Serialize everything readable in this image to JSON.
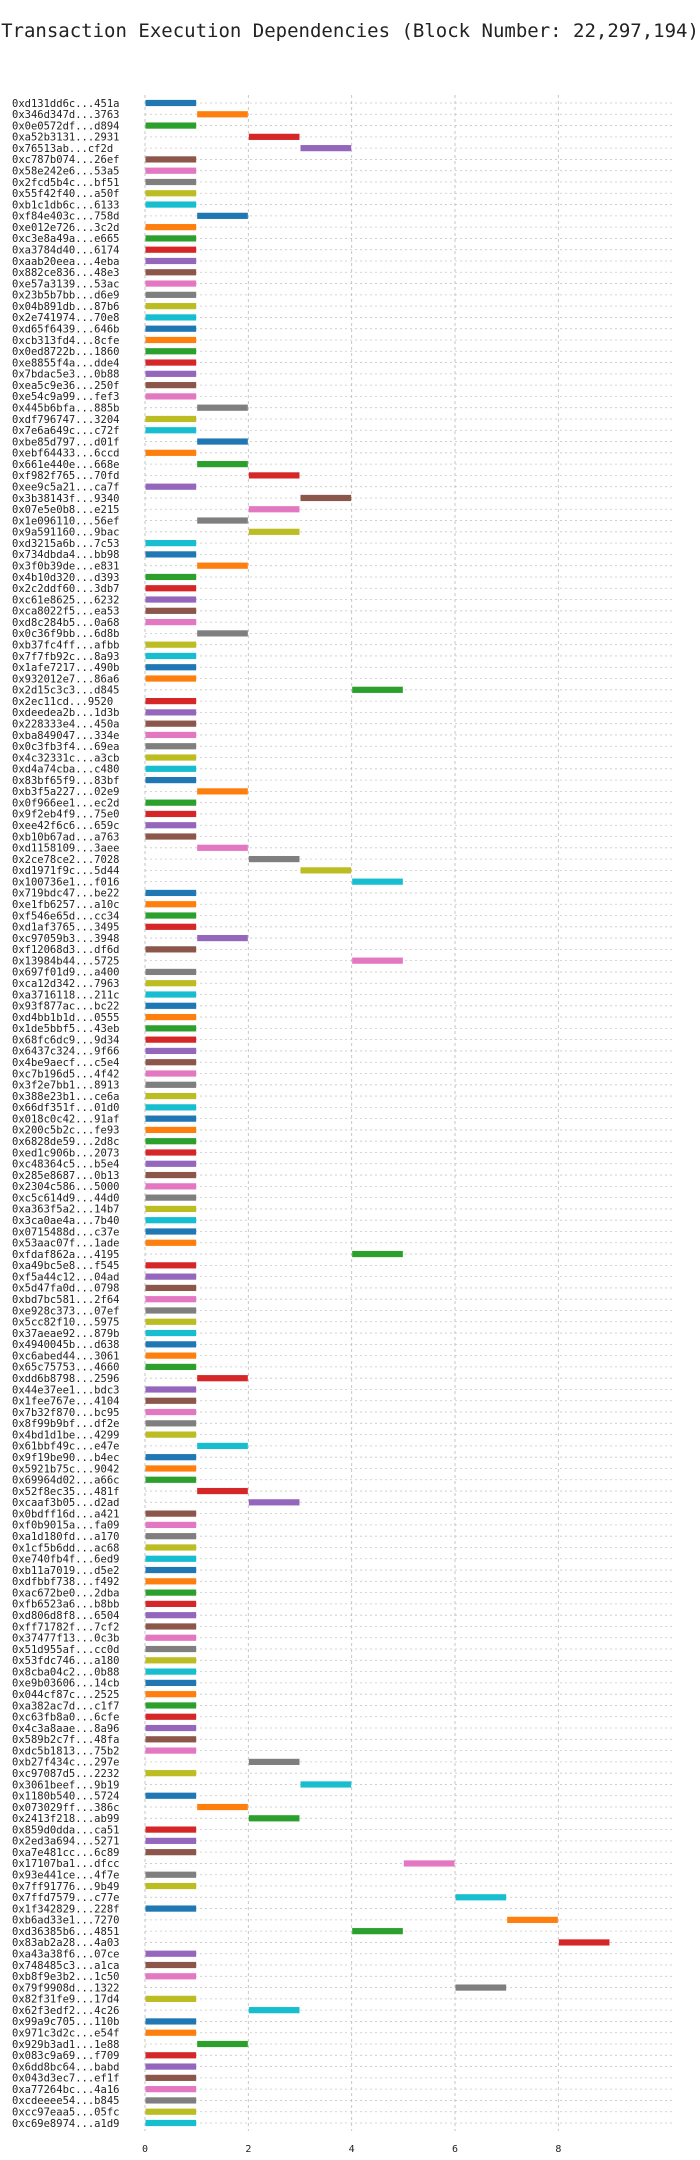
{
  "chart_data": {
    "type": "bar",
    "orientation": "horizontal-gantt",
    "title": "Transaction Execution Dependencies (Block Number: 22,297,194)",
    "xlabel": "",
    "ylabel": "",
    "xlim": [
      0,
      10.2
    ],
    "xticks": [
      0,
      2,
      4,
      6,
      8
    ],
    "grid": true,
    "palette": [
      "#1f77b4",
      "#ff7f0e",
      "#2ca02c",
      "#d62728",
      "#9467bd",
      "#8c564b",
      "#e377c2",
      "#7f7f7f",
      "#bcbd22",
      "#17becf"
    ],
    "tasks": [
      {
        "label": "0xd131dd6c...451a",
        "start": 0,
        "end": 1
      },
      {
        "label": "0x346d347d...3763",
        "start": 1,
        "end": 2
      },
      {
        "label": "0x0e0572df...d894",
        "start": 0,
        "end": 1
      },
      {
        "label": "0xa52b3131...2931",
        "start": 2,
        "end": 3
      },
      {
        "label": "0x76513ab...cf2d",
        "start": 3,
        "end": 4
      },
      {
        "label": "0xc787b074...26ef",
        "start": 0,
        "end": 1
      },
      {
        "label": "0x58e242e6...53a5",
        "start": 0,
        "end": 1
      },
      {
        "label": "0x2fcd5b4c...bf51",
        "start": 0,
        "end": 1
      },
      {
        "label": "0x55f42f40...a50f",
        "start": 0,
        "end": 1
      },
      {
        "label": "0xb1c1db6c...6133",
        "start": 0,
        "end": 1
      },
      {
        "label": "0xf84e403c...758d",
        "start": 1,
        "end": 2
      },
      {
        "label": "0xe012e726...3c2d",
        "start": 0,
        "end": 1
      },
      {
        "label": "0xc3e8a49a...e665",
        "start": 0,
        "end": 1
      },
      {
        "label": "0xa3784d40...6174",
        "start": 0,
        "end": 1
      },
      {
        "label": "0xaab20eea...4eba",
        "start": 0,
        "end": 1
      },
      {
        "label": "0x882ce836...48e3",
        "start": 0,
        "end": 1
      },
      {
        "label": "0xe57a3139...53ac",
        "start": 0,
        "end": 1
      },
      {
        "label": "0x23b5b7bb...d6e9",
        "start": 0,
        "end": 1
      },
      {
        "label": "0x04b891db...87b6",
        "start": 0,
        "end": 1
      },
      {
        "label": "0x2e741974...70e8",
        "start": 0,
        "end": 1
      },
      {
        "label": "0xd65f6439...646b",
        "start": 0,
        "end": 1
      },
      {
        "label": "0xcb313fd4...8cfe",
        "start": 0,
        "end": 1
      },
      {
        "label": "0x0ed8722b...1860",
        "start": 0,
        "end": 1
      },
      {
        "label": "0xe8855f4a...dde4",
        "start": 0,
        "end": 1
      },
      {
        "label": "0x7bdac5e3...0b88",
        "start": 0,
        "end": 1
      },
      {
        "label": "0xea5c9e36...250f",
        "start": 0,
        "end": 1
      },
      {
        "label": "0xe54c9a99...fef3",
        "start": 0,
        "end": 1
      },
      {
        "label": "0x445b6bfa...885b",
        "start": 1,
        "end": 2
      },
      {
        "label": "0xdf796747...3204",
        "start": 0,
        "end": 1
      },
      {
        "label": "0x7e6a649c...c72f",
        "start": 0,
        "end": 1
      },
      {
        "label": "0xbe85d797...d01f",
        "start": 1,
        "end": 2
      },
      {
        "label": "0xebf64433...6ccd",
        "start": 0,
        "end": 1
      },
      {
        "label": "0x661e440e...668e",
        "start": 1,
        "end": 2
      },
      {
        "label": "0xf982f765...70fd",
        "start": 2,
        "end": 3
      },
      {
        "label": "0xee9c5a21...ca7f",
        "start": 0,
        "end": 1
      },
      {
        "label": "0x3b38143f...9340",
        "start": 3,
        "end": 4
      },
      {
        "label": "0x07e5e0b8...e215",
        "start": 2,
        "end": 3
      },
      {
        "label": "0x1e096110...56ef",
        "start": 1,
        "end": 2
      },
      {
        "label": "0x9a591160...9bac",
        "start": 2,
        "end": 3
      },
      {
        "label": "0xd3215a6b...7c53",
        "start": 0,
        "end": 1
      },
      {
        "label": "0x734dbda4...bb98",
        "start": 0,
        "end": 1
      },
      {
        "label": "0x3f0b39de...e831",
        "start": 1,
        "end": 2
      },
      {
        "label": "0x4b10d320...d393",
        "start": 0,
        "end": 1
      },
      {
        "label": "0x2c2ddf60...3db7",
        "start": 0,
        "end": 1
      },
      {
        "label": "0xc61e8625...6232",
        "start": 0,
        "end": 1
      },
      {
        "label": "0xca8022f5...ea53",
        "start": 0,
        "end": 1
      },
      {
        "label": "0xd8c284b5...0a68",
        "start": 0,
        "end": 1
      },
      {
        "label": "0x0c36f9bb...6d8b",
        "start": 1,
        "end": 2
      },
      {
        "label": "0xb37fc4ff...afbb",
        "start": 0,
        "end": 1
      },
      {
        "label": "0x7f7fb92c...8a93",
        "start": 0,
        "end": 1
      },
      {
        "label": "0x1afe7217...490b",
        "start": 0,
        "end": 1
      },
      {
        "label": "0x932012e7...86a6",
        "start": 0,
        "end": 1
      },
      {
        "label": "0x2d15c3c3...d845",
        "start": 4,
        "end": 5
      },
      {
        "label": "0x2ec11cd...9520",
        "start": 0,
        "end": 1
      },
      {
        "label": "0xdeedea2b...1d3b",
        "start": 0,
        "end": 1
      },
      {
        "label": "0x228333e4...450a",
        "start": 0,
        "end": 1
      },
      {
        "label": "0xba849047...334e",
        "start": 0,
        "end": 1
      },
      {
        "label": "0x0c3fb3f4...69ea",
        "start": 0,
        "end": 1
      },
      {
        "label": "0x4c32331c...a3cb",
        "start": 0,
        "end": 1
      },
      {
        "label": "0xd4a74cba...c480",
        "start": 0,
        "end": 1
      },
      {
        "label": "0x83bf65f9...83bf",
        "start": 0,
        "end": 1
      },
      {
        "label": "0xb3f5a227...02e9",
        "start": 1,
        "end": 2
      },
      {
        "label": "0x0f966ee1...ec2d",
        "start": 0,
        "end": 1
      },
      {
        "label": "0x9f2eb4f9...75e0",
        "start": 0,
        "end": 1
      },
      {
        "label": "0xee42f6c6...659c",
        "start": 0,
        "end": 1
      },
      {
        "label": "0xb10b67ad...a763",
        "start": 0,
        "end": 1
      },
      {
        "label": "0xd1158109...3aee",
        "start": 1,
        "end": 2
      },
      {
        "label": "0x2ce78ce2...7028",
        "start": 2,
        "end": 3
      },
      {
        "label": "0xd1971f9c...5d44",
        "start": 3,
        "end": 4
      },
      {
        "label": "0x100736e1...f016",
        "start": 4,
        "end": 5
      },
      {
        "label": "0x719bdc47...be22",
        "start": 0,
        "end": 1
      },
      {
        "label": "0xe1fb6257...a10c",
        "start": 0,
        "end": 1
      },
      {
        "label": "0xf546e65d...cc34",
        "start": 0,
        "end": 1
      },
      {
        "label": "0xd1af3765...3495",
        "start": 0,
        "end": 1
      },
      {
        "label": "0xc97059b3...3948",
        "start": 1,
        "end": 2
      },
      {
        "label": "0xf12068d3...df6d",
        "start": 0,
        "end": 1
      },
      {
        "label": "0x13984b44...5725",
        "start": 4,
        "end": 5
      },
      {
        "label": "0x697f01d9...a400",
        "start": 0,
        "end": 1
      },
      {
        "label": "0xca12d342...7963",
        "start": 0,
        "end": 1
      },
      {
        "label": "0xa3716118...211c",
        "start": 0,
        "end": 1
      },
      {
        "label": "0x93f877ac...bc22",
        "start": 0,
        "end": 1
      },
      {
        "label": "0xd4bb1b1d...0555",
        "start": 0,
        "end": 1
      },
      {
        "label": "0x1de5bbf5...43eb",
        "start": 0,
        "end": 1
      },
      {
        "label": "0x68fc6dc9...9d34",
        "start": 0,
        "end": 1
      },
      {
        "label": "0x6437c324...9f66",
        "start": 0,
        "end": 1
      },
      {
        "label": "0x4be9aecf...c5e4",
        "start": 0,
        "end": 1
      },
      {
        "label": "0xc7b196d5...4f42",
        "start": 0,
        "end": 1
      },
      {
        "label": "0x3f2e7bb1...8913",
        "start": 0,
        "end": 1
      },
      {
        "label": "0x388e23b1...ce6a",
        "start": 0,
        "end": 1
      },
      {
        "label": "0x66df351f...01d0",
        "start": 0,
        "end": 1
      },
      {
        "label": "0x018c0c42...91af",
        "start": 0,
        "end": 1
      },
      {
        "label": "0x200c5b2c...fe93",
        "start": 0,
        "end": 1
      },
      {
        "label": "0x6828de59...2d8c",
        "start": 0,
        "end": 1
      },
      {
        "label": "0xed1c906b...2073",
        "start": 0,
        "end": 1
      },
      {
        "label": "0xc48364c5...b5e4",
        "start": 0,
        "end": 1
      },
      {
        "label": "0x285e8687...0b13",
        "start": 0,
        "end": 1
      },
      {
        "label": "0x2304c586...5000",
        "start": 0,
        "end": 1
      },
      {
        "label": "0xc5c614d9...44d0",
        "start": 0,
        "end": 1
      },
      {
        "label": "0xa363f5a2...14b7",
        "start": 0,
        "end": 1
      },
      {
        "label": "0x3ca0ae4a...7b40",
        "start": 0,
        "end": 1
      },
      {
        "label": "0x0715488d...c37e",
        "start": 0,
        "end": 1
      },
      {
        "label": "0x53aac07f...1ade",
        "start": 0,
        "end": 1
      },
      {
        "label": "0xfdaf862a...4195",
        "start": 4,
        "end": 5
      },
      {
        "label": "0xa49bc5e8...f545",
        "start": 0,
        "end": 1
      },
      {
        "label": "0xf5a44c12...04ad",
        "start": 0,
        "end": 1
      },
      {
        "label": "0x5d47fa0d...0798",
        "start": 0,
        "end": 1
      },
      {
        "label": "0xbd7bc581...2f64",
        "start": 0,
        "end": 1
      },
      {
        "label": "0xe928c373...07ef",
        "start": 0,
        "end": 1
      },
      {
        "label": "0x5cc82f10...5975",
        "start": 0,
        "end": 1
      },
      {
        "label": "0x37aeae92...879b",
        "start": 0,
        "end": 1
      },
      {
        "label": "0x4940045b...d638",
        "start": 0,
        "end": 1
      },
      {
        "label": "0xc6abed44...3061",
        "start": 0,
        "end": 1
      },
      {
        "label": "0x65c75753...4660",
        "start": 0,
        "end": 1
      },
      {
        "label": "0xdd6b8798...2596",
        "start": 1,
        "end": 2
      },
      {
        "label": "0x44e37ee1...bdc3",
        "start": 0,
        "end": 1
      },
      {
        "label": "0x1fee767e...4104",
        "start": 0,
        "end": 1
      },
      {
        "label": "0x7b32f870...bc95",
        "start": 0,
        "end": 1
      },
      {
        "label": "0x8f99b9bf...df2e",
        "start": 0,
        "end": 1
      },
      {
        "label": "0x4bd1d1be...4299",
        "start": 0,
        "end": 1
      },
      {
        "label": "0x61bbf49c...e47e",
        "start": 1,
        "end": 2
      },
      {
        "label": "0x9f19be90...b4ec",
        "start": 0,
        "end": 1
      },
      {
        "label": "0x5921b75c...9042",
        "start": 0,
        "end": 1
      },
      {
        "label": "0x69964d02...a66c",
        "start": 0,
        "end": 1
      },
      {
        "label": "0x52f8ec35...481f",
        "start": 1,
        "end": 2
      },
      {
        "label": "0xcaaf3b05...d2ad",
        "start": 2,
        "end": 3
      },
      {
        "label": "0x0bdff16d...a421",
        "start": 0,
        "end": 1
      },
      {
        "label": "0xf0b9015a...fa09",
        "start": 0,
        "end": 1
      },
      {
        "label": "0xa1d180fd...a170",
        "start": 0,
        "end": 1
      },
      {
        "label": "0x1cf5b6dd...ac68",
        "start": 0,
        "end": 1
      },
      {
        "label": "0xe740fb4f...6ed9",
        "start": 0,
        "end": 1
      },
      {
        "label": "0xb11a7019...d5e2",
        "start": 0,
        "end": 1
      },
      {
        "label": "0xdfbbf738...f492",
        "start": 0,
        "end": 1
      },
      {
        "label": "0xac672be0...2dba",
        "start": 0,
        "end": 1
      },
      {
        "label": "0xfb6523a6...b8bb",
        "start": 0,
        "end": 1
      },
      {
        "label": "0xd806d8f8...6504",
        "start": 0,
        "end": 1
      },
      {
        "label": "0xff71782f...7cf2",
        "start": 0,
        "end": 1
      },
      {
        "label": "0x37477f13...0c3b",
        "start": 0,
        "end": 1
      },
      {
        "label": "0x51d955af...cc0d",
        "start": 0,
        "end": 1
      },
      {
        "label": "0x53fdc746...a180",
        "start": 0,
        "end": 1
      },
      {
        "label": "0x8cba04c2...0b88",
        "start": 0,
        "end": 1
      },
      {
        "label": "0xe9b03606...14cb",
        "start": 0,
        "end": 1
      },
      {
        "label": "0x044cf87c...2525",
        "start": 0,
        "end": 1
      },
      {
        "label": "0xa382ac7d...c1f7",
        "start": 0,
        "end": 1
      },
      {
        "label": "0xc63fb8a0...6cfe",
        "start": 0,
        "end": 1
      },
      {
        "label": "0x4c3a8aae...8a96",
        "start": 0,
        "end": 1
      },
      {
        "label": "0x589b2c7f...48fa",
        "start": 0,
        "end": 1
      },
      {
        "label": "0xdc5b1813...75b2",
        "start": 0,
        "end": 1
      },
      {
        "label": "0xb27f434c...297e",
        "start": 2,
        "end": 3
      },
      {
        "label": "0xc97087d5...2232",
        "start": 0,
        "end": 1
      },
      {
        "label": "0x3061beef...9b19",
        "start": 3,
        "end": 4
      },
      {
        "label": "0x1180b540...5724",
        "start": 0,
        "end": 1
      },
      {
        "label": "0x073029ff...386c",
        "start": 1,
        "end": 2
      },
      {
        "label": "0x2413f218...ab99",
        "start": 2,
        "end": 3
      },
      {
        "label": "0x859d0dda...ca51",
        "start": 0,
        "end": 1
      },
      {
        "label": "0x2ed3a694...5271",
        "start": 0,
        "end": 1
      },
      {
        "label": "0xa7e481cc...6c89",
        "start": 0,
        "end": 1
      },
      {
        "label": "0x17107ba1...dfcc",
        "start": 5,
        "end": 6
      },
      {
        "label": "0x93e441ce...4f7e",
        "start": 0,
        "end": 1
      },
      {
        "label": "0x7ff91776...9b49",
        "start": 0,
        "end": 1
      },
      {
        "label": "0x7ffd7579...c77e",
        "start": 6,
        "end": 7
      },
      {
        "label": "0x1f342829...228f",
        "start": 0,
        "end": 1
      },
      {
        "label": "0xb6ad33e1...7270",
        "start": 7,
        "end": 8
      },
      {
        "label": "0xd36385b6...4851",
        "start": 4,
        "end": 5
      },
      {
        "label": "0x83ab2a28...4a03",
        "start": 8,
        "end": 9
      },
      {
        "label": "0xa43a38f6...07ce",
        "start": 0,
        "end": 1
      },
      {
        "label": "0x748485c3...a1ca",
        "start": 0,
        "end": 1
      },
      {
        "label": "0xb8f9e3b2...1c50",
        "start": 0,
        "end": 1
      },
      {
        "label": "0x79f9908d...1322",
        "start": 6,
        "end": 7
      },
      {
        "label": "0x82f31fe9...17d4",
        "start": 0,
        "end": 1
      },
      {
        "label": "0x62f3edf2...4c26",
        "start": 2,
        "end": 3
      },
      {
        "label": "0x99a9c705...110b",
        "start": 0,
        "end": 1
      },
      {
        "label": "0x971c3d2c...e54f",
        "start": 0,
        "end": 1
      },
      {
        "label": "0x929b3ad1...1e88",
        "start": 1,
        "end": 2
      },
      {
        "label": "0x083c9a69...f709",
        "start": 0,
        "end": 1
      },
      {
        "label": "0x6dd8bc64...babd",
        "start": 0,
        "end": 1
      },
      {
        "label": "0x043d3ec7...ef1f",
        "start": 0,
        "end": 1
      },
      {
        "label": "0xa77264bc...4a16",
        "start": 0,
        "end": 1
      },
      {
        "label": "0xcdeeee54...b845",
        "start": 0,
        "end": 1
      },
      {
        "label": "0xcc97eaa5...05fc",
        "start": 0,
        "end": 1
      },
      {
        "label": "0xc69e8974...a1d9",
        "start": 0,
        "end": 1
      }
    ]
  }
}
